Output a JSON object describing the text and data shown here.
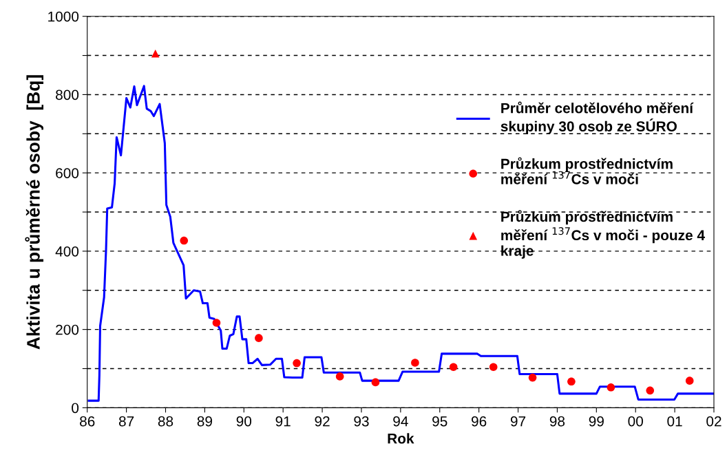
{
  "chart_data": {
    "type": "line",
    "xlabel": "Rok",
    "ylabel": "Aktivita u průměrné osoby  [Bq]",
    "xlim": [
      1986,
      2002
    ],
    "ylim": [
      0,
      1000
    ],
    "xticks": [
      {
        "value": 1986,
        "label": "86"
      },
      {
        "value": 1987,
        "label": "87"
      },
      {
        "value": 1988,
        "label": "88"
      },
      {
        "value": 1989,
        "label": "89"
      },
      {
        "value": 1990,
        "label": "90"
      },
      {
        "value": 1991,
        "label": "91"
      },
      {
        "value": 1992,
        "label": "92"
      },
      {
        "value": 1993,
        "label": "93"
      },
      {
        "value": 1994,
        "label": "94"
      },
      {
        "value": 1995,
        "label": "95"
      },
      {
        "value": 1996,
        "label": "96"
      },
      {
        "value": 1997,
        "label": "97"
      },
      {
        "value": 1998,
        "label": "98"
      },
      {
        "value": 1999,
        "label": "99"
      },
      {
        "value": 2000,
        "label": "00"
      },
      {
        "value": 2001,
        "label": "01"
      },
      {
        "value": 2002,
        "label": "02"
      }
    ],
    "yticks": [
      0,
      {
        "value": 100,
        "label": null
      },
      200,
      {
        "value": 300,
        "label": null
      },
      400,
      {
        "value": 500,
        "label": null
      },
      600,
      {
        "value": 700,
        "label": null
      },
      800,
      {
        "value": 900,
        "label": null
      },
      1000
    ],
    "grid": "y",
    "legend": "right",
    "series": [
      {
        "name": "Průměr celotělového měření\nskupiny 30 osob ze SÚRO",
        "color": "#0000ff",
        "marker": "none",
        "line_style": "solid",
        "x": [
          1986.04,
          1986.29,
          1986.31,
          1986.33,
          1986.43,
          1986.48,
          1986.51,
          1986.63,
          1986.7,
          1986.75,
          1986.86,
          1987.0,
          1987.1,
          1987.2,
          1987.27,
          1987.45,
          1987.52,
          1987.62,
          1987.7,
          1987.85,
          1987.98,
          1988.02,
          1988.12,
          1988.2,
          1988.46,
          1988.52,
          1988.72,
          1988.88,
          1988.95,
          1989.07,
          1989.12,
          1989.24,
          1989.41,
          1989.45,
          1989.56,
          1989.64,
          1989.73,
          1989.82,
          1989.89,
          1989.96,
          1990.06,
          1990.12,
          1990.22,
          1990.35,
          1990.46,
          1990.67,
          1990.82,
          1990.97,
          1991.03,
          1991.24,
          1991.49,
          1991.55,
          1991.98,
          1992.04,
          1992.96,
          1993.02,
          1993.95,
          1994.05,
          1994.98,
          1995.05,
          1995.96,
          1996.05,
          1996.98,
          1997.04,
          1998.0,
          1998.06,
          1999.0,
          1999.09,
          1999.98,
          2000.07,
          2000.99,
          2001.08,
          2001.98
        ],
        "values": [
          18,
          18,
          82,
          209,
          282,
          403,
          509,
          512,
          573,
          691,
          645,
          791,
          767,
          821,
          773,
          822,
          764,
          758,
          745,
          776,
          676,
          518,
          488,
          421,
          364,
          279,
          300,
          297,
          267,
          267,
          230,
          227,
          197,
          151,
          151,
          184,
          188,
          233,
          233,
          175,
          175,
          114,
          114,
          125,
          109,
          110,
          125,
          125,
          78,
          77,
          77,
          129,
          129,
          90,
          90,
          69,
          69,
          92,
          92,
          138,
          138,
          132,
          132,
          86,
          86,
          36,
          36,
          54,
          54,
          21,
          21,
          36,
          36
        ]
      },
      {
        "name": "Průzkum prostřednictvím\nměření $^{137}$Cs v moči",
        "type": "scatter",
        "color": "#ff0000",
        "marker": "circle",
        "x": [
          1988.47,
          1989.3,
          1990.38,
          1991.35,
          1992.45,
          1993.36,
          1994.37,
          1995.35,
          1996.37,
          1997.37,
          1998.36,
          1999.37,
          2000.37,
          2001.38
        ],
        "values": [
          427,
          217,
          178,
          114,
          80,
          65,
          115,
          104,
          104,
          77,
          67,
          52,
          44,
          69
        ]
      },
      {
        "name": "Průzkum prostřednictvím\nměření $^{137}$Cs v moči - pouze 4\nkraje",
        "type": "scatter",
        "color": "#ff0000",
        "marker": "triangle",
        "x": [
          1987.74
        ],
        "values": [
          905
        ]
      }
    ]
  }
}
